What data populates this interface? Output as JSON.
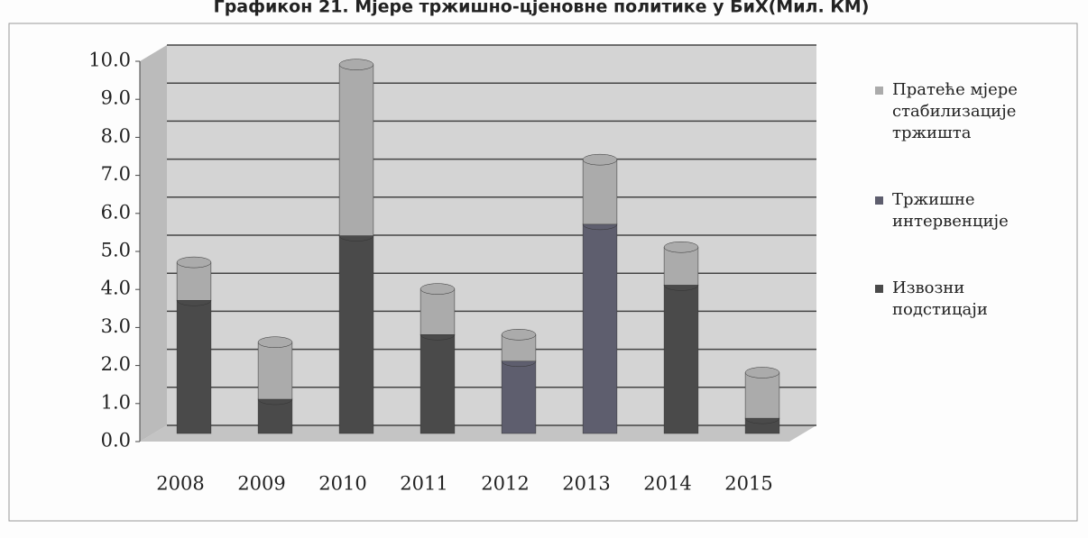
{
  "chart_data": {
    "type": "bar",
    "stacked": true,
    "title": "Графикон 21. Мјере тржишно-цјеновне политике у БиХ(Мил. КМ)",
    "categories": [
      "2008",
      "2009",
      "2010",
      "2011",
      "2012",
      "2013",
      "2014",
      "2015"
    ],
    "series": [
      {
        "name": "Извозни подстицаји",
        "color": "#4a4a4a",
        "values": [
          3.5,
          0.9,
          5.2,
          2.6,
          0,
          0,
          3.9,
          0.4
        ]
      },
      {
        "name": "Тржишне интервенције",
        "color": "#5e5e6e",
        "values": [
          0,
          0,
          0,
          0,
          1.9,
          5.5,
          0,
          0
        ]
      },
      {
        "name": "Пратеће мјере стабилизације тржишта",
        "color": "#ababab",
        "values": [
          1.0,
          1.5,
          4.5,
          1.2,
          0.7,
          1.7,
          1.0,
          1.2
        ]
      }
    ],
    "ylim": [
      0,
      10
    ],
    "yticks": [
      {
        "value": 0,
        "label": "0.0"
      },
      {
        "value": 1,
        "label": "1.0"
      },
      {
        "value": 2,
        "label": "2.0"
      },
      {
        "value": 3,
        "label": "3.0"
      },
      {
        "value": 4,
        "label": "4.0"
      },
      {
        "value": 5,
        "label": "5.0"
      },
      {
        "value": 6,
        "label": "6.0"
      },
      {
        "value": 7,
        "label": "7.0"
      },
      {
        "value": 8,
        "label": "8.0"
      },
      {
        "value": 9,
        "label": "9.0"
      },
      {
        "value": 10,
        "label": "10.0"
      }
    ],
    "grid": true,
    "legend": "right"
  }
}
